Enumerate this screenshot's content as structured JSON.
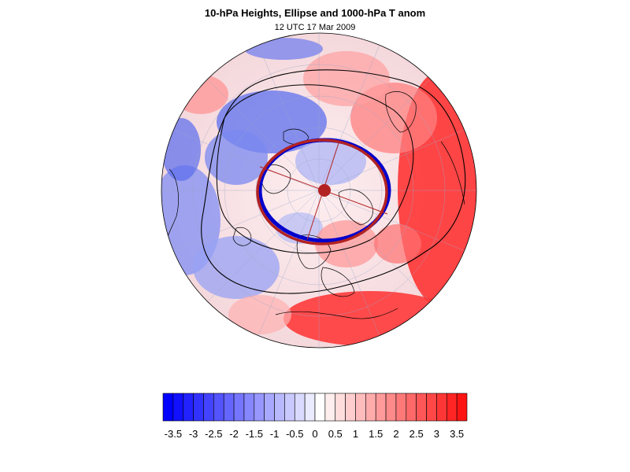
{
  "title": "10-hPa Heights, Ellipse and 1000-hPa T anom",
  "subtitle": "12 UTC 17 Mar 2009",
  "map": {
    "projection": "polar-stereographic (north pole centered)",
    "contours": "black outer 10-hPa height contour and inner vortex contour",
    "ellipses": [
      {
        "name": "blue",
        "color": "#0000cc"
      },
      {
        "name": "red",
        "color": "#b22222"
      }
    ],
    "center_marker_color": "#b22222"
  },
  "colorbar": {
    "ticks": [
      "-3.5",
      "-3",
      "-2.5",
      "-2",
      "-1.5",
      "-1",
      "-0.5",
      "0",
      "0.5",
      "1",
      "1.5",
      "2",
      "2.5",
      "3",
      "3.5"
    ],
    "min_color": "#0000ff",
    "mid_color": "#ffffff",
    "max_color": "#ff0000",
    "segments": 30
  }
}
